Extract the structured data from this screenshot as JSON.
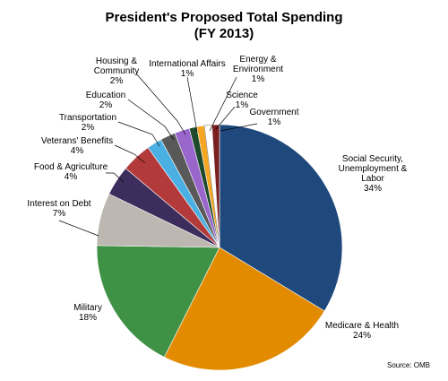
{
  "chart_data": {
    "type": "pie",
    "title": "President's Proposed Total Spending",
    "subtitle": "(FY 2013)",
    "source": "Source: OMB",
    "slices": [
      {
        "key": "social-security",
        "label_lines": [
          "Social Security,",
          "Unemployment &",
          "Labor"
        ],
        "percent_text": "34%",
        "value": 34,
        "color": "#1f497d"
      },
      {
        "key": "medicare-health",
        "label_lines": [
          "Medicare & Health"
        ],
        "percent_text": "24%",
        "value": 24,
        "color": "#e38b00"
      },
      {
        "key": "military",
        "label_lines": [
          "Military"
        ],
        "percent_text": "18%",
        "value": 18,
        "color": "#3f9146"
      },
      {
        "key": "interest-on-debt",
        "label_lines": [
          "Interest on Debt"
        ],
        "percent_text": "7%",
        "value": 7,
        "color": "#bcb8b1"
      },
      {
        "key": "food-agriculture",
        "label_lines": [
          "Food & Agriculture"
        ],
        "percent_text": "4%",
        "value": 4,
        "color": "#3c2d5c"
      },
      {
        "key": "veterans-benefits",
        "label_lines": [
          "Veterans' Benefits"
        ],
        "percent_text": "4%",
        "value": 4,
        "color": "#b33a3a"
      },
      {
        "key": "transportation",
        "label_lines": [
          "Transportation"
        ],
        "percent_text": "2%",
        "value": 2,
        "color": "#4aafe2"
      },
      {
        "key": "education",
        "label_lines": [
          "Education"
        ],
        "percent_text": "2%",
        "value": 2,
        "color": "#595959"
      },
      {
        "key": "housing-community",
        "label_lines": [
          "Housing &",
          "Community"
        ],
        "percent_text": "2%",
        "value": 2,
        "color": "#9966cc"
      },
      {
        "key": "international-affairs",
        "label_lines": [
          "International Affairs"
        ],
        "percent_text": "1%",
        "value": 1,
        "color": "#1e4a2c"
      },
      {
        "key": "energy-environment",
        "label_lines": [
          "Energy &",
          "Environment"
        ],
        "percent_text": "1%",
        "value": 1,
        "color": "#f5a623"
      },
      {
        "key": "science",
        "label_lines": [
          "Science"
        ],
        "percent_text": "1%",
        "value": 1,
        "color": "#ffffff"
      },
      {
        "key": "government",
        "label_lines": [
          "Government"
        ],
        "percent_text": "1%",
        "value": 1,
        "color": "#7a1f1f"
      }
    ]
  }
}
